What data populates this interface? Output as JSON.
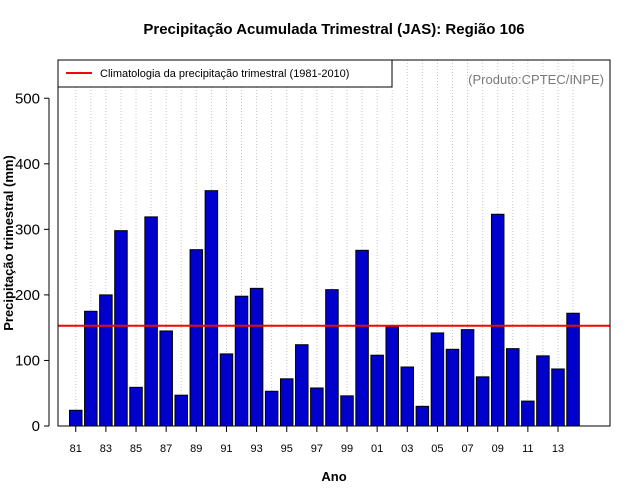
{
  "chart_data": {
    "type": "bar",
    "title": "Precipitação Acumulada Trimestral (JAS): Região 106",
    "xlabel": "Ano",
    "ylabel": "Precipitação trimestral (mm)",
    "ylim": [
      0,
      560
    ],
    "yticks": [
      0,
      100,
      200,
      300,
      400,
      500
    ],
    "categories": [
      "1981",
      "1982",
      "1983",
      "1984",
      "1985",
      "1986",
      "1987",
      "1988",
      "1989",
      "1990",
      "1991",
      "1992",
      "1993",
      "1994",
      "1995",
      "1996",
      "1997",
      "1998",
      "1999",
      "2000",
      "2001",
      "2002",
      "2003",
      "2004",
      "2005",
      "2006",
      "2007",
      "2008",
      "2009",
      "2010",
      "2011",
      "2012",
      "2013",
      "2014"
    ],
    "xtick_labels": [
      "81",
      "83",
      "85",
      "87",
      "89",
      "91",
      "93",
      "95",
      "97",
      "99",
      "01",
      "03",
      "05",
      "07",
      "09",
      "11",
      "13"
    ],
    "values": [
      24,
      175,
      200,
      298,
      59,
      319,
      145,
      47,
      269,
      359,
      110,
      198,
      210,
      53,
      72,
      124,
      58,
      208,
      46,
      268,
      108,
      152,
      90,
      30,
      142,
      117,
      147,
      75,
      323,
      118,
      38,
      107,
      87,
      172
    ],
    "bar_color": "#0000cc",
    "climatology": {
      "value": 153,
      "label": "Climatologia da precipitação trimestral (1981-2010)",
      "color": "#ff0000"
    },
    "legend_position": "top-left",
    "credit": "(Produto:CPTEC/INPE)",
    "grid": "vertical dotted"
  }
}
